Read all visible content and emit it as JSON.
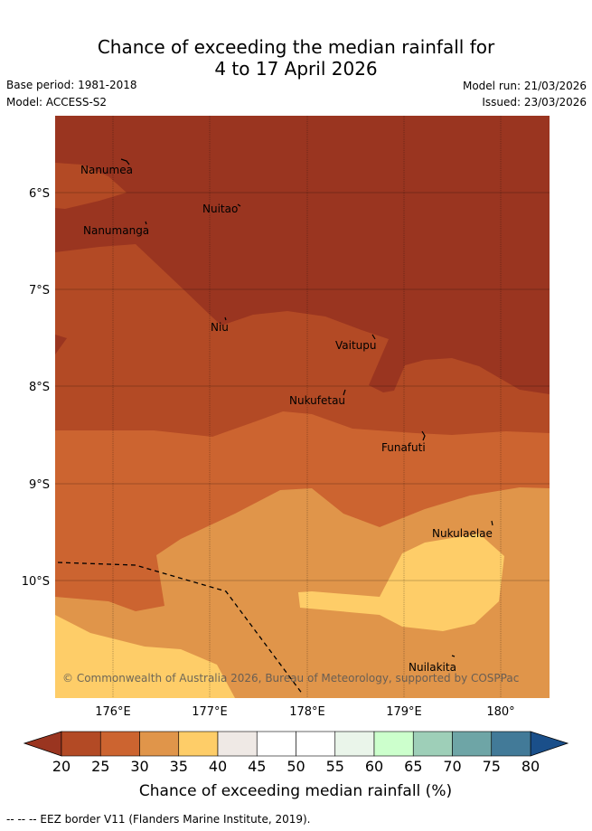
{
  "title": {
    "line1": "Chance of exceeding the median rainfall for",
    "line2": "4 to 17 April 2026"
  },
  "meta": {
    "base_period": "Base period: 1981-2018",
    "model": "Model: ACCESS-S2",
    "model_run": "Model run: 21/03/2026",
    "issued": "Issued: 23/03/2026"
  },
  "map": {
    "lat_labels": [
      "6°S",
      "7°S",
      "8°S",
      "9°S",
      "10°S"
    ],
    "lon_labels": [
      "176°E",
      "177°E",
      "178°E",
      "179°E",
      "180°"
    ],
    "places": [
      "Nanumea",
      "Nuitao",
      "Nanumanga",
      "Niu",
      "Vaitupu",
      "Nukufetau",
      "Funafuti",
      "Nukulaelae",
      "Nuilakita"
    ],
    "copyright": "© Commonwealth of Australia 2026, Bureau of Meteorology, supported by COSPPac"
  },
  "colorbar": {
    "ticks": [
      "20",
      "25",
      "30",
      "35",
      "40",
      "45",
      "50",
      "55",
      "60",
      "65",
      "70",
      "75",
      "80"
    ],
    "colors": [
      "#9a3520",
      "#b34a25",
      "#cc6430",
      "#e0954a",
      "#fecd68",
      "#efe9e5",
      "#ffffff",
      "#ffffff",
      "#eaf5ea",
      "#ccffcc",
      "#9ecfb8",
      "#6ea5a6",
      "#427a98",
      "#1a4f8a"
    ],
    "label": "Chance of exceeding median rainfall (%)"
  },
  "footer": {
    "eez_legend": "-- -- -- EEZ border V11 (Flanders Marine Institute, 2019)."
  }
}
